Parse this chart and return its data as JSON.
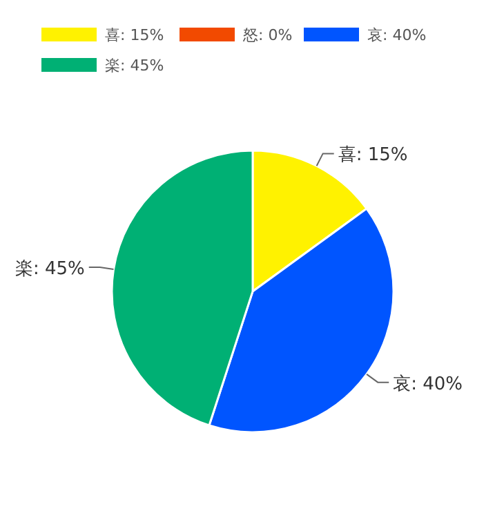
{
  "chart_data": {
    "type": "pie",
    "categories": [
      "喜",
      "怒",
      "哀",
      "楽"
    ],
    "values": [
      15,
      0,
      40,
      45
    ],
    "value_labels": [
      "15%",
      "0%",
      "40%",
      "45%"
    ],
    "colors": [
      "#fff200",
      "#f24a00",
      "#0055ff",
      "#00b074"
    ],
    "data_labels": true,
    "legend": "top left"
  }
}
